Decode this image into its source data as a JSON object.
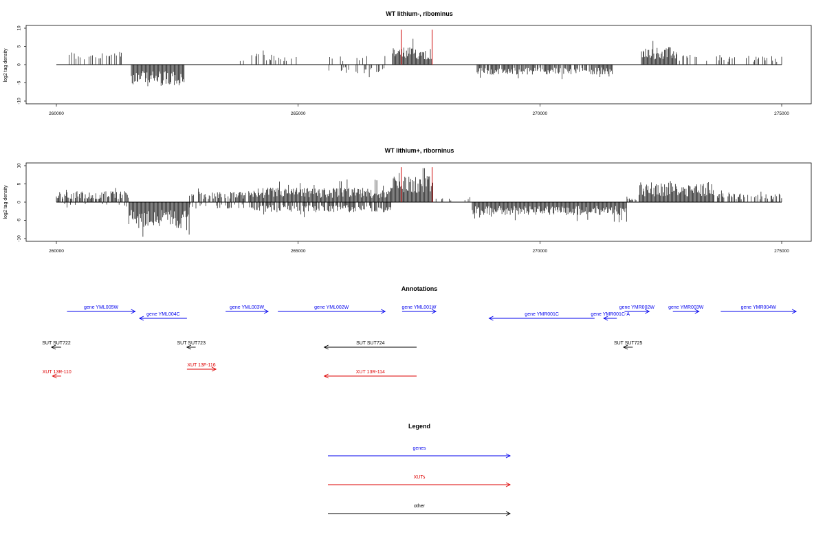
{
  "chart_data": [
    {
      "type": "bar",
      "title": "WT lithium-, ribominus",
      "ylabel": "log2 tag density",
      "xlim": [
        260000,
        275000
      ],
      "ylim": [
        -10,
        10
      ],
      "xticks": [
        "260000",
        "265000",
        "270000",
        "275000"
      ],
      "yticks": [
        "10",
        "5",
        "0",
        "-5",
        "-10"
      ],
      "grid": false,
      "highlight_color": "#cc0000",
      "highlight_positions": [
        267130,
        267770
      ],
      "clusters": [
        {
          "start": 260250,
          "end": 261400,
          "sign": 1,
          "amp": 3.0,
          "density": 0.35
        },
        {
          "start": 261550,
          "end": 262650,
          "sign": -1,
          "amp": 5.0,
          "density": 1.0
        },
        {
          "start": 263800,
          "end": 265000,
          "sign": 1,
          "amp": 2.5,
          "density": 0.3
        },
        {
          "start": 265600,
          "end": 266800,
          "sign": -1,
          "amp": 2.0,
          "density": 0.35
        },
        {
          "start": 265600,
          "end": 266800,
          "sign": 1,
          "amp": 2.0,
          "density": 0.2
        },
        {
          "start": 266950,
          "end": 267780,
          "sign": 1,
          "amp": 4.0,
          "density": 1.0
        },
        {
          "start": 268700,
          "end": 271500,
          "sign": -1,
          "amp": 2.3,
          "density": 0.8
        },
        {
          "start": 272100,
          "end": 272850,
          "sign": 1,
          "amp": 4.0,
          "density": 1.0
        },
        {
          "start": 272850,
          "end": 275000,
          "sign": 1,
          "amp": 2.2,
          "density": 0.3
        }
      ]
    },
    {
      "type": "bar",
      "title": "WT lithium+, riborninus",
      "ylabel": "log2 tag density",
      "xlim": [
        260000,
        275000
      ],
      "ylim": [
        -10,
        10
      ],
      "xticks": [
        "260000",
        "265000",
        "270000",
        "275000"
      ],
      "yticks": [
        "10",
        "5",
        "0",
        "-5",
        "-10"
      ],
      "grid": false,
      "highlight_color": "#cc0000",
      "highlight_positions": [
        267130,
        267770
      ],
      "clusters": [
        {
          "start": 260000,
          "end": 261500,
          "sign": 1,
          "amp": 2.5,
          "density": 0.8
        },
        {
          "start": 260000,
          "end": 261500,
          "sign": -1,
          "amp": 1.2,
          "density": 0.2
        },
        {
          "start": 261500,
          "end": 262750,
          "sign": -1,
          "amp": 6.0,
          "density": 1.0
        },
        {
          "start": 262750,
          "end": 264000,
          "sign": 1,
          "amp": 2.5,
          "density": 0.7
        },
        {
          "start": 262750,
          "end": 264000,
          "sign": -1,
          "amp": 1.5,
          "density": 0.3
        },
        {
          "start": 264000,
          "end": 266950,
          "sign": 1,
          "amp": 3.3,
          "density": 1.0
        },
        {
          "start": 264000,
          "end": 266950,
          "sign": -1,
          "amp": 2.3,
          "density": 0.7
        },
        {
          "start": 266950,
          "end": 267800,
          "sign": 1,
          "amp": 6.0,
          "density": 1.0
        },
        {
          "start": 267800,
          "end": 268600,
          "sign": 1,
          "amp": 1.2,
          "density": 0.2
        },
        {
          "start": 268600,
          "end": 271800,
          "sign": -1,
          "amp": 3.0,
          "density": 1.0
        },
        {
          "start": 271800,
          "end": 272000,
          "sign": 1,
          "amp": 1.0,
          "density": 0.5
        },
        {
          "start": 272050,
          "end": 273600,
          "sign": 1,
          "amp": 4.5,
          "density": 1.0
        },
        {
          "start": 273600,
          "end": 275000,
          "sign": 1,
          "amp": 2.0,
          "density": 0.5
        }
      ]
    }
  ],
  "annotations": {
    "title": "Annotations",
    "features": [
      {
        "label": "gene YML005W",
        "start": 260220,
        "end": 261630,
        "row": 0,
        "dir": "right",
        "color": "#0000ee"
      },
      {
        "label": "gene YML004C",
        "start": 261720,
        "end": 262700,
        "row": 1,
        "dir": "left",
        "color": "#0000ee"
      },
      {
        "label": "gene YML003W",
        "start": 263500,
        "end": 264380,
        "row": 0,
        "dir": "right",
        "color": "#0000ee"
      },
      {
        "label": "gene YML002W",
        "start": 264580,
        "end": 266800,
        "row": 0,
        "dir": "right",
        "color": "#0000ee"
      },
      {
        "label": "gene YML001W",
        "start": 267150,
        "end": 267850,
        "row": 0,
        "dir": "right",
        "color": "#0000ee"
      },
      {
        "label": "gene YMR001C",
        "start": 268950,
        "end": 271130,
        "row": 1,
        "dir": "left",
        "color": "#0000ee"
      },
      {
        "label": "gene YMR001C-A",
        "start": 271320,
        "end": 271590,
        "row": 1,
        "dir": "left",
        "color": "#0000ee"
      },
      {
        "label": "gene YMR002W",
        "start": 271750,
        "end": 272260,
        "row": 0,
        "dir": "right",
        "color": "#0000ee"
      },
      {
        "label": "gene YMR003W",
        "start": 272750,
        "end": 273290,
        "row": 0,
        "dir": "right",
        "color": "#0000ee"
      },
      {
        "label": "gene YMR004W",
        "start": 273740,
        "end": 275300,
        "row": 0,
        "dir": "right",
        "color": "#0000ee"
      },
      {
        "label": "SUT SUT722",
        "start": 259900,
        "end": 260100,
        "row": 2,
        "dir": "left",
        "color": "#000000"
      },
      {
        "label": "SUT SUT723",
        "start": 262700,
        "end": 262880,
        "row": 2,
        "dir": "left",
        "color": "#000000"
      },
      {
        "label": "SUT SUT724",
        "start": 265540,
        "end": 267450,
        "row": 2,
        "dir": "left",
        "color": "#000000"
      },
      {
        "label": "SUT SUT725",
        "start": 271730,
        "end": 271920,
        "row": 2,
        "dir": "left",
        "color": "#000000"
      },
      {
        "label": "XUT 13R-110",
        "start": 259920,
        "end": 260100,
        "row": 4,
        "dir": "left",
        "color": "#dd0000"
      },
      {
        "label": "XUT 13F-116",
        "start": 262700,
        "end": 263300,
        "row": 3,
        "dir": "right",
        "color": "#dd0000"
      },
      {
        "label": "XUT 13R-114",
        "start": 265540,
        "end": 267450,
        "row": 4,
        "dir": "left",
        "color": "#dd0000"
      }
    ]
  },
  "legend": {
    "title": "Legend",
    "items": [
      {
        "label": "genes",
        "color": "#0000ee"
      },
      {
        "label": "XUTs",
        "color": "#dd0000"
      },
      {
        "label": "other",
        "color": "#000000"
      }
    ]
  }
}
